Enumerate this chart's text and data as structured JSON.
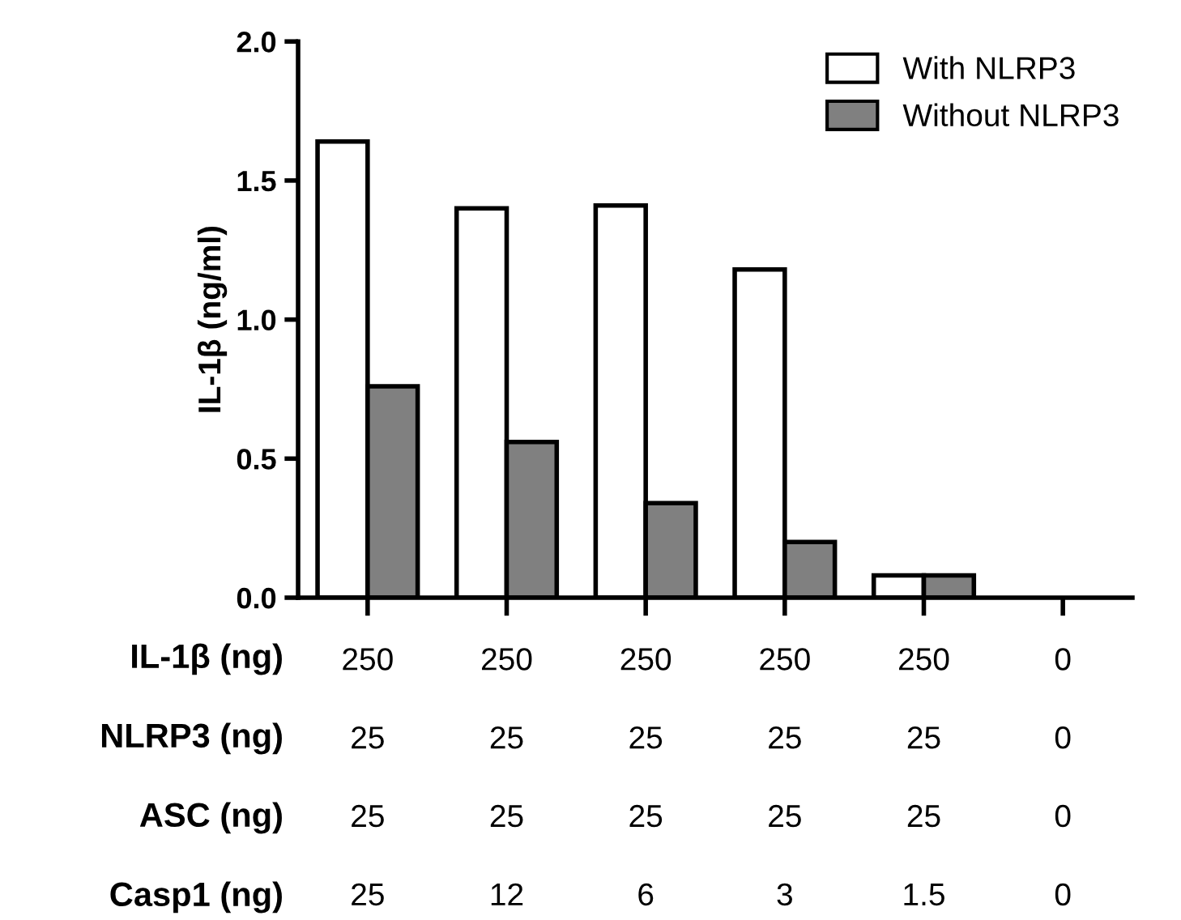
{
  "chart_data": {
    "type": "bar",
    "ylabel": "IL-1β (ng/ml)",
    "categories": [
      "250\n25\n25\n25",
      "250\n25\n25\n12",
      "250\n25\n25\n6",
      "250\n25\n25\n3",
      "250\n25\n25\n1.5",
      "0\n0\n0\n0"
    ],
    "series": [
      {
        "name": "With NLRP3",
        "color": "#ffffff",
        "values": [
          1.64,
          1.4,
          1.41,
          1.18,
          0.08,
          null
        ]
      },
      {
        "name": "Without NLRP3",
        "color": "#808080",
        "values": [
          0.76,
          0.56,
          0.34,
          0.2,
          0.08,
          null
        ]
      }
    ],
    "annotations": [
      "IL-1β (ng)",
      "NLRP3 (ng)",
      "ASC (ng)",
      "Casp1 (ng)"
    ],
    "ylim": [
      0,
      2.0
    ],
    "yticks": [
      {
        "value": 0,
        "label": "0.0"
      },
      {
        "value": 0.5,
        "label": "0.5"
      },
      {
        "value": 1.0,
        "label": "1.0"
      },
      {
        "value": 1.5,
        "label": "1.5"
      },
      {
        "value": 2.0,
        "label": "2.0"
      }
    ],
    "legend": "top right",
    "grid": false
  }
}
